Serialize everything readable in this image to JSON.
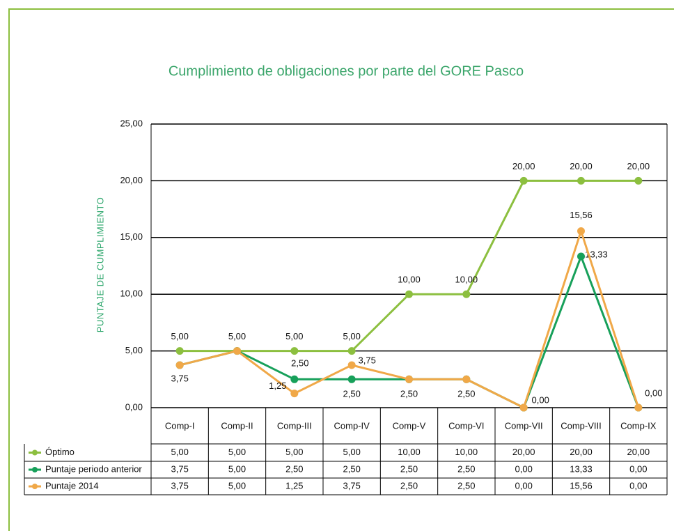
{
  "chart_data": {
    "type": "line",
    "title": "Cumplimiento de obligaciones por parte del GORE Pasco",
    "y_label": "PUNTAJE DE CUMPLIMIENTO",
    "categories": [
      "Comp-I",
      "Comp-II",
      "Comp-III",
      "Comp-IV",
      "Comp-V",
      "Comp-VI",
      "Comp-VII",
      "Comp-VIII",
      "Comp-IX"
    ],
    "series": [
      {
        "name": "Óptimo",
        "color": "#8cbf3f",
        "values": [
          5,
          5,
          5,
          5,
          10,
          10,
          20,
          20,
          20
        ],
        "value_labels": [
          "5,00",
          "5,00",
          "5,00",
          "5,00",
          "10,00",
          "10,00",
          "20,00",
          "20,00",
          "20,00"
        ]
      },
      {
        "name": "Puntaje periodo anterior",
        "color": "#17a05a",
        "values": [
          3.75,
          5,
          2.5,
          2.5,
          2.5,
          2.5,
          0,
          13.33,
          0
        ],
        "value_labels": [
          "3,75",
          "5,00",
          "2,50",
          "2,50",
          "2,50",
          "2,50",
          "0,00",
          "13,33",
          "0,00"
        ]
      },
      {
        "name": "Puntaje 2014",
        "color": "#f0a848",
        "values": [
          3.75,
          5,
          1.25,
          3.75,
          2.5,
          2.5,
          0,
          15.56,
          0
        ],
        "value_labels": [
          "3,75",
          "5,00",
          "1,25",
          "3,75",
          "2,50",
          "2,50",
          "0,00",
          "15,56",
          "0,00"
        ]
      }
    ],
    "ylim": [
      0,
      25
    ],
    "yticks": [
      {
        "value": 0,
        "label": "0,00"
      },
      {
        "value": 5,
        "label": "5,00"
      },
      {
        "value": 10,
        "label": "10,00"
      },
      {
        "value": 15,
        "label": "15,00"
      },
      {
        "value": 20,
        "label": "20,00"
      },
      {
        "value": 25,
        "label": "25,00"
      }
    ],
    "grid": true,
    "legend": "bottom-table"
  }
}
